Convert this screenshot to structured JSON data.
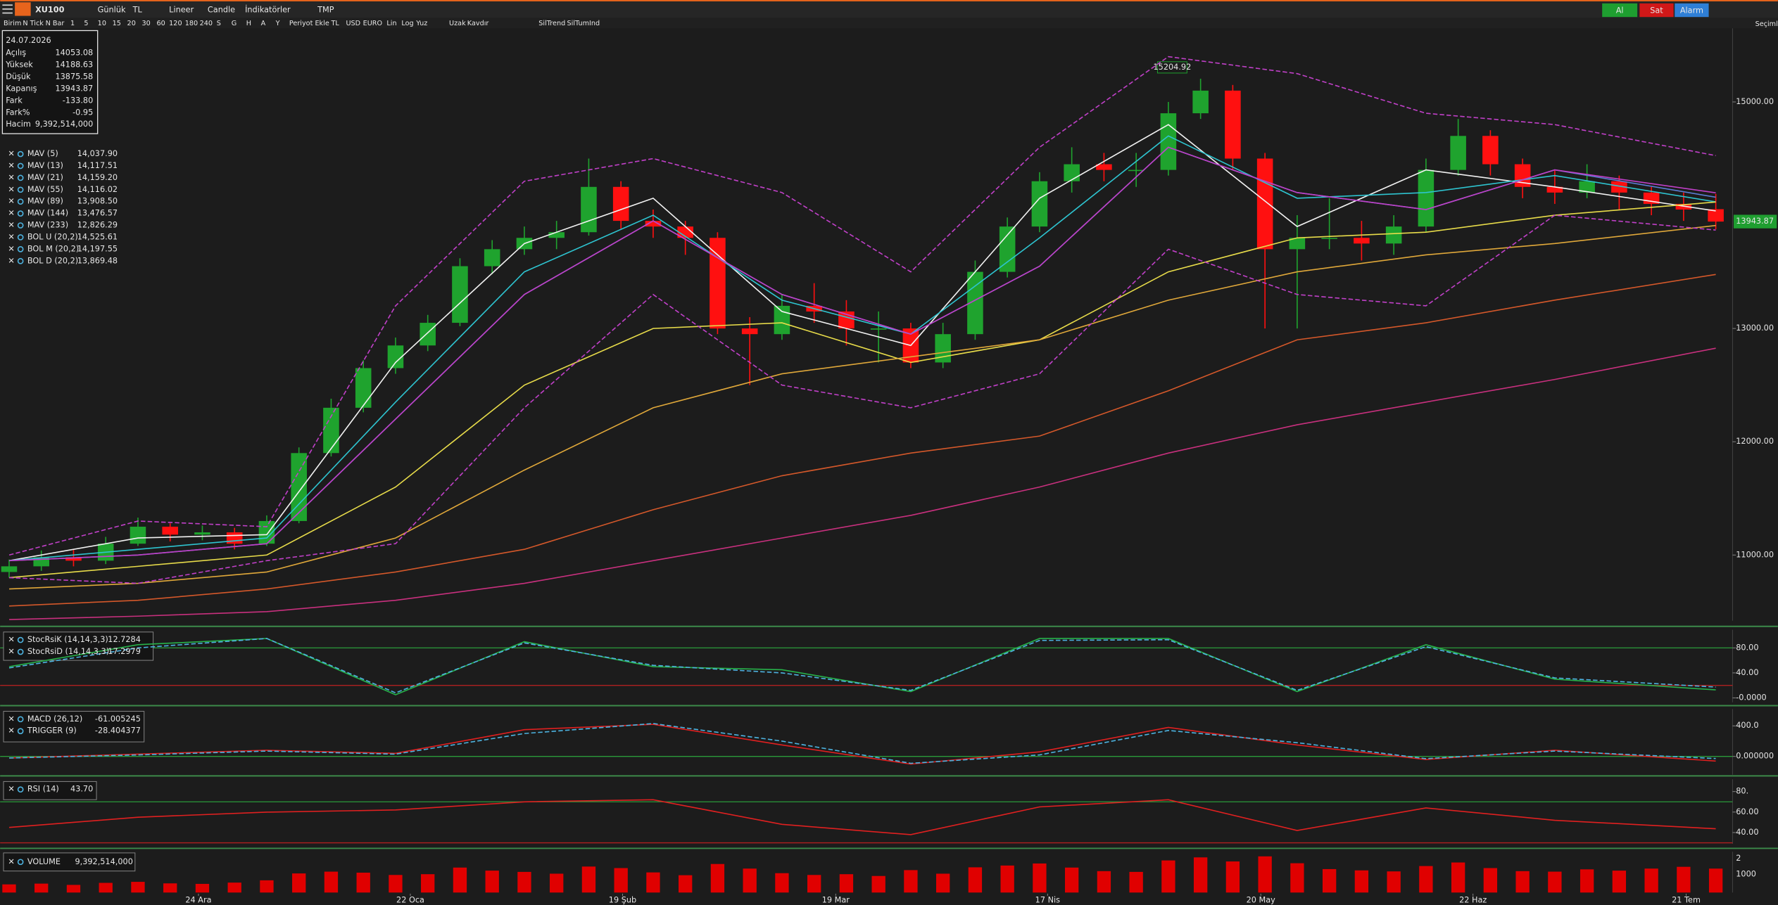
{
  "toolbar": {
    "symbol": "XU100",
    "period": "Günlük",
    "currency": "TL",
    "scale": "Lineer",
    "style": "Candle",
    "indicators": "İndikatörler",
    "template": "TMP",
    "buy": "Al",
    "sell": "Sat",
    "alarm": "Alarm",
    "selections": "Seçimle",
    "subbar": [
      "Birim",
      "N Tick",
      "N Bar",
      "1",
      "5",
      "10",
      "15",
      "20",
      "30",
      "60",
      "120",
      "180",
      "240",
      "S",
      "G",
      "H",
      "A",
      "Y",
      "Periyot Ekle",
      "TL",
      "USD",
      "EURO",
      "Lin",
      "Log",
      "Yuz",
      "Uzak",
      "Kavdır",
      "SilTrend",
      "SilTumInd"
    ]
  },
  "info": {
    "date": "24.07.2026",
    "rows": [
      [
        "Açılış",
        "14053.08"
      ],
      [
        "Yüksek",
        "14188.63"
      ],
      [
        "Düşük",
        "13875.58"
      ],
      [
        "Kapanış",
        "13943.87"
      ],
      [
        "Fark",
        "-133.80"
      ],
      [
        "Fark%",
        "-0.95"
      ],
      [
        "Hacim",
        "9,392,514,000"
      ]
    ]
  },
  "chart_data": [
    {
      "type": "candlestick",
      "xlim": [
        -0.28,
        53.52
      ],
      "ylim": [
        10420,
        15650
      ],
      "yticks": [
        {
          "value": 11000,
          "label": "11000.00"
        },
        {
          "value": 12000,
          "label": "12000.00"
        },
        {
          "value": 13000,
          "label": "13000.00"
        },
        {
          "value": 15000,
          "label": "15000.00"
        }
      ],
      "xticks": [
        {
          "value": 5.88,
          "label": "24 Ara"
        },
        {
          "value": 12.46,
          "label": "22 Oca"
        },
        {
          "value": 19.05,
          "label": "19 Şub"
        },
        {
          "value": 25.67,
          "label": "19 Mar"
        },
        {
          "value": 32.25,
          "label": "17 Nis"
        },
        {
          "value": 38.87,
          "label": "20 May"
        },
        {
          "value": 45.46,
          "label": "22 Haz"
        },
        {
          "value": 52.08,
          "label": "21 Tem"
        }
      ],
      "up_color": "#1fa32e",
      "down_color": "#ff1010",
      "last_label": "13943.87",
      "annotation": "15204.92",
      "open": [
        10850,
        10900,
        10980,
        10950,
        11100,
        11250,
        11180,
        11200,
        11100,
        11300,
        11900,
        12300,
        12650,
        12850,
        13050,
        13550,
        13700,
        13800,
        13850,
        14250,
        13950,
        13900,
        13800,
        13000,
        12950,
        13200,
        13150,
        13000,
        13000,
        12700,
        12950,
        13500,
        13900,
        14300,
        14450,
        14400,
        14400,
        14900,
        15100,
        14500,
        13700,
        13800,
        13800,
        13750,
        13900,
        14400,
        14700,
        14450,
        14250,
        14200,
        14300,
        14200,
        14100,
        14053.08
      ],
      "high": [
        10960,
        11040,
        11050,
        11160,
        11330,
        11280,
        11260,
        11240,
        11350,
        11950,
        12380,
        12720,
        12920,
        13120,
        13620,
        13780,
        13900,
        13950,
        14500,
        14300,
        14050,
        13950,
        13850,
        13100,
        13300,
        13400,
        13250,
        13150,
        13050,
        13050,
        13600,
        13980,
        14380,
        14600,
        14550,
        14550,
        15000,
        15205,
        15150,
        14550,
        14000,
        14150,
        13950,
        14000,
        14500,
        14850,
        14750,
        14500,
        14400,
        14450,
        14350,
        14250,
        14200,
        14188.63
      ],
      "low": [
        10800,
        10860,
        10900,
        10920,
        11080,
        11120,
        11130,
        11050,
        11080,
        11280,
        11870,
        12260,
        12600,
        12800,
        13020,
        13480,
        13650,
        13700,
        13820,
        13880,
        13800,
        13650,
        12950,
        12500,
        12900,
        13050,
        12850,
        12700,
        12650,
        12650,
        12900,
        13450,
        13850,
        14200,
        14300,
        14250,
        14350,
        14850,
        14400,
        13000,
        13000,
        13700,
        13600,
        13650,
        13850,
        14350,
        14350,
        14150,
        14100,
        14150,
        14050,
        14000,
        13950,
        13875.58
      ],
      "close": [
        10900,
        10980,
        10950,
        11100,
        11250,
        11180,
        11200,
        11100,
        11300,
        11900,
        12300,
        12650,
        12850,
        13050,
        13550,
        13700,
        13800,
        13850,
        14250,
        13950,
        13900,
        13800,
        13000,
        12950,
        13200,
        13150,
        13000,
        13000,
        12700,
        12950,
        13500,
        13900,
        14300,
        14450,
        14400,
        14400,
        14900,
        15100,
        14500,
        13700,
        13800,
        13800,
        13750,
        13900,
        14400,
        14700,
        14450,
        14250,
        14200,
        14300,
        14200,
        14100,
        14050,
        13943.87
      ]
    },
    {
      "type": "line",
      "x": [
        0,
        4,
        8,
        12,
        16,
        20,
        24,
        28,
        32,
        36,
        40,
        44,
        48,
        53
      ],
      "series": [
        {
          "name": "MAV (5)",
          "value_label": "14,037.90",
          "color": "#f2f2f2",
          "values": [
            10950,
            11150,
            11180,
            12700,
            13750,
            14150,
            13150,
            12850,
            14150,
            14800,
            13900,
            14400,
            14250,
            14038
          ]
        },
        {
          "name": "MAV (13)",
          "value_label": "14,117.51",
          "color": "#2ec4d0",
          "values": [
            10950,
            11050,
            11150,
            12350,
            13500,
            14000,
            13250,
            12950,
            13800,
            14700,
            14150,
            14200,
            14350,
            14118
          ]
        },
        {
          "name": "MAV (21)",
          "value_label": "14,159.20",
          "color": "#5b7fd6",
          "values": [
            10950,
            11000,
            11100,
            12200,
            13300,
            13950,
            13300,
            12950,
            13550,
            14600,
            14200,
            14050,
            14400,
            14159
          ]
        },
        {
          "name": "MAV (55)",
          "value_label": "14,116.02",
          "color": "#e8dc4a",
          "values": [
            10800,
            10900,
            11000,
            11600,
            12500,
            13000,
            13050,
            12700,
            12900,
            13500,
            13800,
            13850,
            14000,
            14116
          ]
        },
        {
          "name": "MAV (89)",
          "value_label": "13,908.50",
          "color": "#e0a83a",
          "values": [
            10700,
            10750,
            10850,
            11150,
            11750,
            12300,
            12600,
            12750,
            12900,
            13250,
            13500,
            13650,
            13750,
            13909
          ]
        },
        {
          "name": "MAV (144)",
          "value_label": "13,476.57",
          "color": "#d4582a",
          "values": [
            10550,
            10600,
            10700,
            10850,
            11050,
            11400,
            11700,
            11900,
            12050,
            12450,
            12900,
            13050,
            13250,
            13477
          ]
        },
        {
          "name": "MAV (233)",
          "value_label": "12,826.29",
          "color": "#c8307e",
          "values": [
            10430,
            10460,
            10500,
            10600,
            10750,
            10950,
            11150,
            11350,
            11600,
            11900,
            12150,
            12350,
            12550,
            12826
          ]
        },
        {
          "name": "BOL U (20,2)",
          "value_label": "14,525.61",
          "color": "#c040c8",
          "dashed": true,
          "values": [
            11000,
            11300,
            11250,
            13200,
            14300,
            14500,
            14200,
            13500,
            14600,
            15400,
            15250,
            14900,
            14800,
            14526
          ]
        },
        {
          "name": "BOL M (20,2)",
          "value_label": "14,197.55",
          "color": "#c040c8",
          "values": [
            10950,
            11000,
            11100,
            12200,
            13300,
            13950,
            13300,
            12950,
            13550,
            14600,
            14200,
            14050,
            14400,
            14198
          ]
        },
        {
          "name": "BOL D (20,2)",
          "value_label": "13,869.48",
          "color": "#c040c8",
          "dashed": true,
          "values": [
            10800,
            10750,
            10950,
            11100,
            12300,
            13300,
            12500,
            12300,
            12600,
            13700,
            13300,
            13200,
            14000,
            13869
          ]
        }
      ]
    },
    {
      "type": "line",
      "ylim": [
        -7,
        109
      ],
      "yticks": [
        {
          "value": 80,
          "label": "80.00"
        },
        {
          "value": 40,
          "label": "40.00"
        },
        {
          "value": 0,
          "label": "-0.0000"
        }
      ],
      "levels": [
        {
          "value": 80,
          "color": "#2a9a3a"
        },
        {
          "value": 20,
          "color": "#b02020"
        }
      ],
      "x": [
        0,
        4,
        8,
        12,
        16,
        20,
        24,
        28,
        32,
        36,
        40,
        44,
        48,
        53
      ],
      "series": [
        {
          "name": "StocRsiK (14,14,3,3)",
          "value_label": "12.7284",
          "color": "#27b24a",
          "values": [
            50,
            85,
            95,
            5,
            90,
            50,
            45,
            10,
            95,
            95,
            10,
            85,
            30,
            12.7284
          ]
        },
        {
          "name": "StocRsiD (14,14,3,3)",
          "value_label": "17.2979",
          "color": "#4db3e0",
          "dashed": true,
          "values": [
            48,
            80,
            95,
            8,
            88,
            52,
            40,
            12,
            92,
            93,
            12,
            82,
            32,
            17.2979
          ]
        }
      ]
    },
    {
      "type": "line",
      "ylim": [
        -240,
        620
      ],
      "yticks": [
        {
          "value": 400,
          "label": "400.0"
        },
        {
          "value": 0,
          "label": "0.000000"
        }
      ],
      "levels": [
        {
          "value": 0,
          "color": "#2a9a3a"
        }
      ],
      "x": [
        0,
        4,
        8,
        12,
        16,
        20,
        24,
        28,
        32,
        36,
        40,
        44,
        48,
        53
      ],
      "series": [
        {
          "name": "MACD (26,12)",
          "value_label": "-61.005245",
          "color": "#e02020",
          "values": [
            -20,
            30,
            80,
            40,
            350,
            420,
            150,
            -100,
            60,
            380,
            150,
            -40,
            80,
            -61.005245
          ]
        },
        {
          "name": "TRIGGER (9)",
          "value_label": "-28.404377",
          "color": "#4db3e0",
          "dashed": true,
          "values": [
            -20,
            20,
            70,
            30,
            300,
            430,
            200,
            -90,
            20,
            340,
            180,
            -30,
            70,
            -28.404377
          ]
        }
      ]
    },
    {
      "type": "line",
      "ylim": [
        29,
        92
      ],
      "yticks": [
        {
          "value": 80,
          "label": "80."
        },
        {
          "value": 60,
          "label": "60.00"
        },
        {
          "value": 40,
          "label": "40.00"
        }
      ],
      "levels": [
        {
          "value": 70,
          "color": "#2a9a3a"
        },
        {
          "value": 30,
          "color": "#b02020"
        }
      ],
      "x": [
        0,
        4,
        8,
        12,
        16,
        20,
        24,
        28,
        32,
        36,
        40,
        44,
        48,
        53
      ],
      "series": [
        {
          "name": "RSI (14)",
          "value_label": "43.70",
          "color": "#e02020",
          "values": [
            45,
            55,
            60,
            62,
            70,
            72,
            48,
            38,
            65,
            72,
            42,
            64,
            52,
            43.7
          ]
        }
      ]
    },
    {
      "type": "bar",
      "ylim": [
        0,
        16000000000
      ],
      "axis_texts": [
        "2",
        "1000"
      ],
      "color": "#e00000",
      "name": "VOLUME",
      "value_label": "9,392,514,000",
      "values": [
        3200000000,
        3500000000,
        3000000000,
        3800000000,
        4200000000,
        3600000000,
        3400000000,
        3900000000,
        4800000000,
        7500000000,
        8200000000,
        7800000000,
        6900000000,
        7200000000,
        9800000000,
        8600000000,
        8100000000,
        7400000000,
        10200000000,
        9600000000,
        7900000000,
        6800000000,
        11200000000,
        9400000000,
        7600000000,
        6900000000,
        7200000000,
        6500000000,
        8800000000,
        7400000000,
        9900000000,
        10600000000,
        11400000000,
        9800000000,
        8400000000,
        8100000000,
        12600000000,
        13800000000,
        12200000000,
        14200000000,
        11500000000,
        9200000000,
        8700000000,
        8300000000,
        10400000000,
        11800000000,
        9600000000,
        8400000000,
        8200000000,
        9100000000,
        8600000000,
        9400000000,
        10100000000,
        9392514000
      ]
    }
  ]
}
